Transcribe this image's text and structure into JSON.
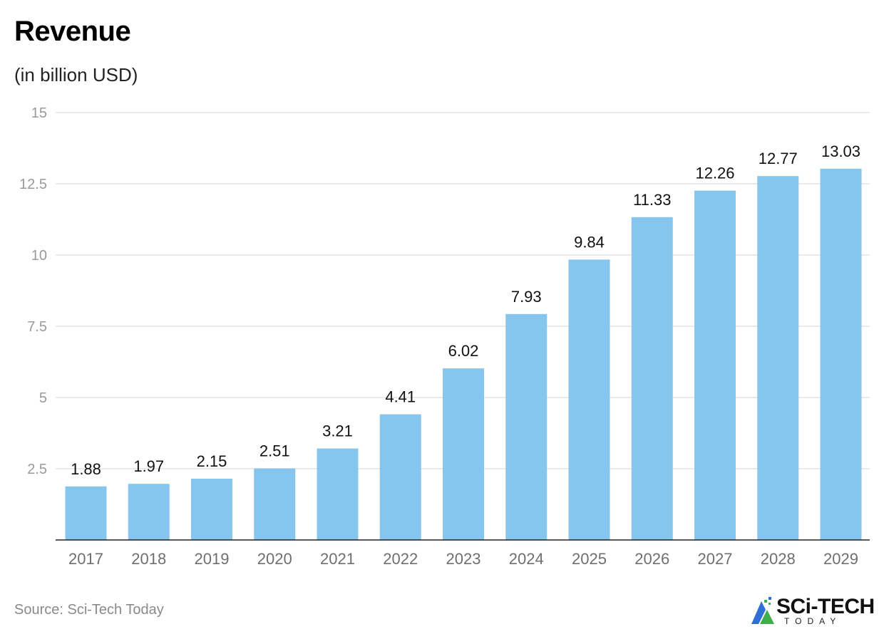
{
  "header": {
    "title": "Revenue",
    "subtitle": "(in billion USD)"
  },
  "footer": {
    "source": "Source: Sci-Tech Today",
    "logo_main": "SCi-TECH",
    "logo_sub": "TODAY"
  },
  "colors": {
    "bar": "#86c5ee",
    "grid": "#e3e3e3",
    "axis": "#222222",
    "logo_blue": "#2f6fd6",
    "logo_green": "#3fae49"
  },
  "chart_data": {
    "type": "bar",
    "title": "Revenue",
    "subtitle": "(in billion USD)",
    "xlabel": "",
    "ylabel": "",
    "categories": [
      "2017",
      "2018",
      "2019",
      "2020",
      "2021",
      "2022",
      "2023",
      "2024",
      "2025",
      "2026",
      "2027",
      "2028",
      "2029"
    ],
    "values": [
      1.88,
      1.97,
      2.15,
      2.51,
      3.21,
      4.41,
      6.02,
      7.93,
      9.84,
      11.33,
      12.26,
      12.77,
      13.03
    ],
    "value_labels": [
      "1.88",
      "1.97",
      "2.15",
      "2.51",
      "3.21",
      "4.41",
      "6.02",
      "7.93",
      "9.84",
      "11.33",
      "12.26",
      "12.77",
      "13.03"
    ],
    "ylim": [
      0,
      15
    ],
    "yticks": [
      2.5,
      5,
      7.5,
      10,
      12.5,
      15
    ],
    "ytick_labels": [
      "2.5",
      "5",
      "7.5",
      "10",
      "12.5",
      "15"
    ],
    "grid": true,
    "legend": "none"
  }
}
